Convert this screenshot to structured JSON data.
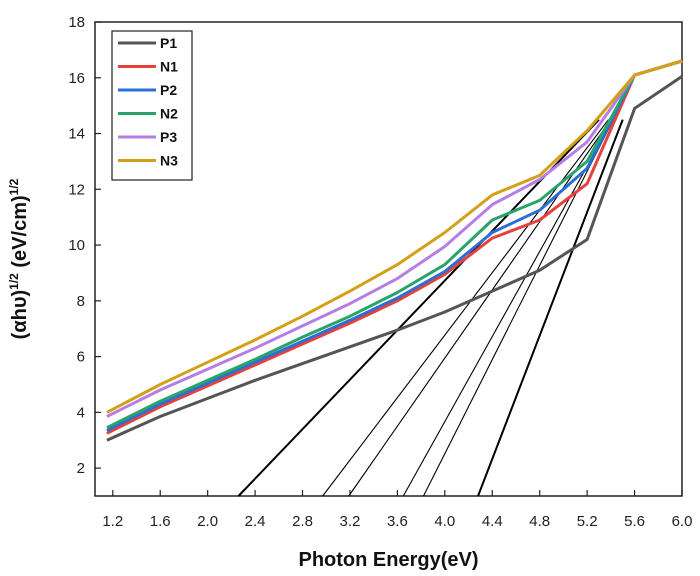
{
  "chart_data": {
    "type": "line",
    "title": "",
    "xlabel": "Photon Energy(eV)",
    "ylabel_main": "(αhυ)",
    "ylabel_sup1": "1/2",
    "ylabel_units": " (eV/cm)",
    "ylabel_sup2": "1/2",
    "xlim": [
      1.05,
      6.0
    ],
    "ylim": [
      1.0,
      18.0
    ],
    "xticks": [
      "1.2",
      "1.6",
      "2.0",
      "2.4",
      "2.8",
      "3.2",
      "3.6",
      "4.0",
      "4.4",
      "4.8",
      "5.2",
      "5.6",
      "6.0"
    ],
    "yticks": [
      "2",
      "4",
      "6",
      "8",
      "10",
      "12",
      "14",
      "16",
      "18"
    ],
    "legend_position": "top-left",
    "series": [
      {
        "name": "P1",
        "color": "#555555",
        "x": [
          1.15,
          1.6,
          2.0,
          2.4,
          2.8,
          3.2,
          3.6,
          4.0,
          4.4,
          4.8,
          5.2,
          5.6,
          6.0
        ],
        "y": [
          3.0,
          3.85,
          4.5,
          5.15,
          5.75,
          6.35,
          6.95,
          7.6,
          8.35,
          9.1,
          10.2,
          14.9,
          16.05
        ]
      },
      {
        "name": "N1",
        "color": "#e8413c",
        "x": [
          1.15,
          1.6,
          2.0,
          2.4,
          2.8,
          3.2,
          3.6,
          4.0,
          4.4,
          4.8,
          5.2,
          5.6,
          6.0
        ],
        "y": [
          3.25,
          4.2,
          4.95,
          5.7,
          6.45,
          7.2,
          8.0,
          8.95,
          10.25,
          10.9,
          12.2,
          16.1,
          16.6
        ]
      },
      {
        "name": "P2",
        "color": "#2b6fd6",
        "x": [
          1.15,
          1.6,
          2.0,
          2.4,
          2.8,
          3.2,
          3.6,
          4.0,
          4.4,
          4.8,
          5.2,
          5.6,
          6.0
        ],
        "y": [
          3.35,
          4.3,
          5.05,
          5.8,
          6.55,
          7.3,
          8.1,
          9.05,
          10.45,
          11.25,
          12.75,
          16.1,
          16.6
        ]
      },
      {
        "name": "N2",
        "color": "#2aa36b",
        "x": [
          1.15,
          1.6,
          2.0,
          2.4,
          2.8,
          3.2,
          3.6,
          4.0,
          4.4,
          4.8,
          5.2,
          5.6,
          6.0
        ],
        "y": [
          3.45,
          4.4,
          5.15,
          5.9,
          6.7,
          7.45,
          8.3,
          9.3,
          10.9,
          11.6,
          13.0,
          16.1,
          16.6
        ]
      },
      {
        "name": "P3",
        "color": "#b57ee6",
        "x": [
          1.15,
          1.6,
          2.0,
          2.4,
          2.8,
          3.2,
          3.6,
          4.0,
          4.4,
          4.8,
          5.2,
          5.6,
          6.0
        ],
        "y": [
          3.85,
          4.8,
          5.55,
          6.3,
          7.1,
          7.9,
          8.8,
          9.95,
          11.45,
          12.35,
          13.7,
          16.1,
          16.6
        ]
      },
      {
        "name": "N3",
        "color": "#d4a017",
        "x": [
          1.15,
          1.6,
          2.0,
          2.4,
          2.8,
          3.2,
          3.6,
          4.0,
          4.4,
          4.8,
          5.2,
          5.6,
          6.0
        ],
        "y": [
          4.0,
          5.0,
          5.8,
          6.6,
          7.45,
          8.35,
          9.3,
          10.45,
          11.8,
          12.5,
          14.1,
          16.1,
          16.6
        ]
      }
    ],
    "tangent_lines": [
      {
        "name": "tangent-N3",
        "x": [
          2.26,
          5.3
        ],
        "y": [
          1.0,
          14.5
        ]
      },
      {
        "name": "tangent-P3",
        "x": [
          2.97,
          5.38
        ],
        "y": [
          1.0,
          14.5
        ]
      },
      {
        "name": "tangent-N2",
        "x": [
          3.19,
          5.4
        ],
        "y": [
          1.0,
          14.5
        ]
      },
      {
        "name": "tangent-P2",
        "x": [
          3.65,
          5.42
        ],
        "y": [
          1.0,
          14.5
        ]
      },
      {
        "name": "tangent-N1",
        "x": [
          3.82,
          5.42
        ],
        "y": [
          1.0,
          14.5
        ]
      },
      {
        "name": "tangent-P1",
        "x": [
          4.28,
          5.5
        ],
        "y": [
          1.0,
          14.5
        ]
      }
    ]
  }
}
